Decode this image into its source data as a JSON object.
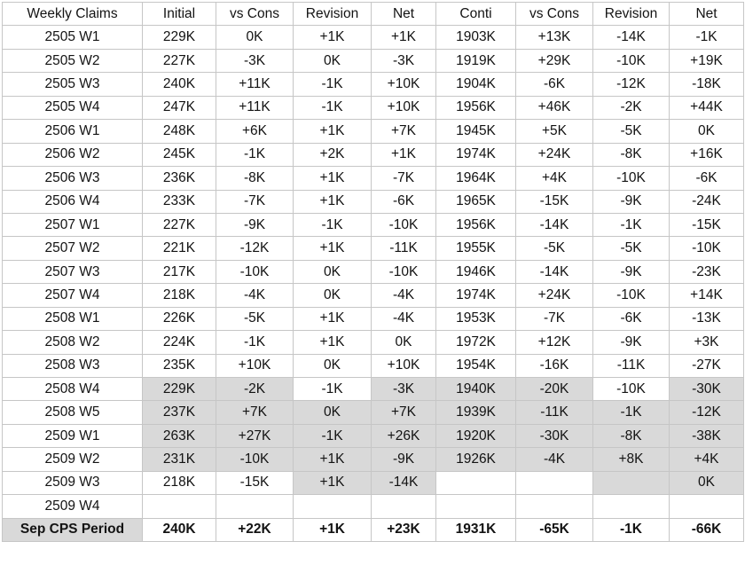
{
  "colors": {
    "highlight": "#d9d9d9",
    "border": "#c6c6c6",
    "text": "#131313",
    "background": "#ffffff"
  },
  "table": {
    "headers": [
      "Weekly Claims",
      "Initial",
      "vs Cons",
      "Revision",
      "Net",
      "Conti",
      "vs Cons",
      "Revision",
      "Net"
    ],
    "rows": [
      {
        "label": "2505 W1",
        "cells": [
          "229K",
          "0K",
          "+1K",
          "+1K",
          "1903K",
          "+13K",
          "-14K",
          "-1K"
        ],
        "gray": []
      },
      {
        "label": "2505 W2",
        "cells": [
          "227K",
          "-3K",
          "0K",
          "-3K",
          "1919K",
          "+29K",
          "-10K",
          "+19K"
        ],
        "gray": []
      },
      {
        "label": "2505 W3",
        "cells": [
          "240K",
          "+11K",
          "-1K",
          "+10K",
          "1904K",
          "-6K",
          "-12K",
          "-18K"
        ],
        "gray": []
      },
      {
        "label": "2505 W4",
        "cells": [
          "247K",
          "+11K",
          "-1K",
          "+10K",
          "1956K",
          "+46K",
          "-2K",
          "+44K"
        ],
        "gray": []
      },
      {
        "label": "2506 W1",
        "cells": [
          "248K",
          "+6K",
          "+1K",
          "+7K",
          "1945K",
          "+5K",
          "-5K",
          "0K"
        ],
        "gray": []
      },
      {
        "label": "2506 W2",
        "cells": [
          "245K",
          "-1K",
          "+2K",
          "+1K",
          "1974K",
          "+24K",
          "-8K",
          "+16K"
        ],
        "gray": []
      },
      {
        "label": "2506 W3",
        "cells": [
          "236K",
          "-8K",
          "+1K",
          "-7K",
          "1964K",
          "+4K",
          "-10K",
          "-6K"
        ],
        "gray": []
      },
      {
        "label": "2506 W4",
        "cells": [
          "233K",
          "-7K",
          "+1K",
          "-6K",
          "1965K",
          "-15K",
          "-9K",
          "-24K"
        ],
        "gray": []
      },
      {
        "label": "2507 W1",
        "cells": [
          "227K",
          "-9K",
          "-1K",
          "-10K",
          "1956K",
          "-14K",
          "-1K",
          "-15K"
        ],
        "gray": []
      },
      {
        "label": "2507 W2",
        "cells": [
          "221K",
          "-12K",
          "+1K",
          "-11K",
          "1955K",
          "-5K",
          "-5K",
          "-10K"
        ],
        "gray": []
      },
      {
        "label": "2507 W3",
        "cells": [
          "217K",
          "-10K",
          "0K",
          "-10K",
          "1946K",
          "-14K",
          "-9K",
          "-23K"
        ],
        "gray": []
      },
      {
        "label": "2507 W4",
        "cells": [
          "218K",
          "-4K",
          "0K",
          "-4K",
          "1974K",
          "+24K",
          "-10K",
          "+14K"
        ],
        "gray": []
      },
      {
        "label": "2508 W1",
        "cells": [
          "226K",
          "-5K",
          "+1K",
          "-4K",
          "1953K",
          "-7K",
          "-6K",
          "-13K"
        ],
        "gray": []
      },
      {
        "label": "2508 W2",
        "cells": [
          "224K",
          "-1K",
          "+1K",
          "0K",
          "1972K",
          "+12K",
          "-9K",
          "+3K"
        ],
        "gray": []
      },
      {
        "label": "2508 W3",
        "cells": [
          "235K",
          "+10K",
          "0K",
          "+10K",
          "1954K",
          "-16K",
          "-11K",
          "-27K"
        ],
        "gray": []
      },
      {
        "label": "2508 W4",
        "cells": [
          "229K",
          "-2K",
          "-1K",
          "-3K",
          "1940K",
          "-20K",
          "-10K",
          "-30K"
        ],
        "gray": [
          0,
          1,
          3,
          4,
          5,
          7
        ]
      },
      {
        "label": "2508 W5",
        "cells": [
          "237K",
          "+7K",
          "0K",
          "+7K",
          "1939K",
          "-11K",
          "-1K",
          "-12K"
        ],
        "gray": [
          0,
          1,
          2,
          3,
          4,
          5,
          6,
          7
        ]
      },
      {
        "label": "2509 W1",
        "cells": [
          "263K",
          "+27K",
          "-1K",
          "+26K",
          "1920K",
          "-30K",
          "-8K",
          "-38K"
        ],
        "gray": [
          0,
          1,
          2,
          3,
          4,
          5,
          6,
          7
        ]
      },
      {
        "label": "2509 W2",
        "cells": [
          "231K",
          "-10K",
          "+1K",
          "-9K",
          "1926K",
          "-4K",
          "+8K",
          "+4K"
        ],
        "gray": [
          0,
          1,
          2,
          3,
          4,
          5,
          6,
          7
        ]
      },
      {
        "label": "2509 W3",
        "cells": [
          "218K",
          "-15K",
          "+1K",
          "-14K",
          "",
          "",
          "",
          "0K"
        ],
        "gray": [
          2,
          3,
          6,
          7
        ]
      },
      {
        "label": "2509 W4",
        "cells": [
          "",
          "",
          "",
          "",
          "",
          "",
          "",
          ""
        ],
        "gray": []
      },
      {
        "label": "Sep CPS Period",
        "cells": [
          "240K",
          "+22K",
          "+1K",
          "+23K",
          "1931K",
          "-65K",
          "-1K",
          "-66K"
        ],
        "gray": [],
        "bold": true,
        "label_gray": true
      }
    ]
  }
}
